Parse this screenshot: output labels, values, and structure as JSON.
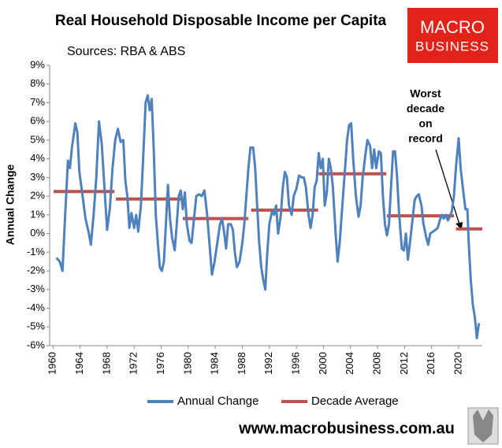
{
  "chart_data": {
    "type": "line",
    "title": "Real Household Disposable Income per Capita",
    "subtitle": "Sources: RBA & ABS",
    "y_label": "Annual Change",
    "annotation": [
      "Worst",
      "decade",
      "on",
      "record"
    ],
    "logo": [
      "MACRO",
      "BUSINESS"
    ],
    "website": "www.macrobusiness.com.au",
    "xlim": [
      1959.5,
      2023.5
    ],
    "xticks": [
      1960,
      1964,
      1968,
      1972,
      1976,
      1980,
      1984,
      1988,
      1992,
      1996,
      2000,
      2004,
      2008,
      2012,
      2016,
      2020
    ],
    "ylim": [
      -6,
      9
    ],
    "yticks": [
      {
        "value": -6,
        "label": "-6%"
      },
      {
        "value": -5,
        "label": "-5%"
      },
      {
        "value": -4,
        "label": "-4%"
      },
      {
        "value": -3,
        "label": "-3%"
      },
      {
        "value": -2,
        "label": "-2%"
      },
      {
        "value": -1,
        "label": "-1%"
      },
      {
        "value": 0,
        "label": "0%"
      },
      {
        "value": 1,
        "label": "1%"
      },
      {
        "value": 2,
        "label": "2%"
      },
      {
        "value": 3,
        "label": "3%"
      },
      {
        "value": 4,
        "label": "4%"
      },
      {
        "value": 5,
        "label": "5%"
      },
      {
        "value": 6,
        "label": "6%"
      },
      {
        "value": 7,
        "label": "7%"
      },
      {
        "value": 8,
        "label": "8%"
      },
      {
        "value": 9,
        "label": "9%"
      }
    ],
    "legend": "bottom",
    "series": [
      {
        "name": "Annual Change",
        "color": "#4f81bd",
        "x": [
          1960.5,
          1961,
          1961.4,
          1961.8,
          1962.2,
          1962.5,
          1962.8,
          1963.3,
          1963.6,
          1963.9,
          1964.3,
          1964.8,
          1965.3,
          1965.6,
          1966,
          1966.4,
          1966.8,
          1967.2,
          1967.6,
          1968,
          1968.4,
          1968.8,
          1969.2,
          1969.6,
          1970,
          1970.4,
          1970.7,
          1971,
          1971.3,
          1971.6,
          1972,
          1972.3,
          1972.6,
          1973,
          1973.3,
          1973.7,
          1974,
          1974.3,
          1974.6,
          1974.9,
          1975.2,
          1975.5,
          1975.8,
          1976.1,
          1976.4,
          1976.7,
          1977,
          1977.3,
          1977.6,
          1978,
          1978.3,
          1978.6,
          1978.9,
          1979.2,
          1979.5,
          1979.8,
          1980.2,
          1980.5,
          1980.8,
          1981.2,
          1981.6,
          1982,
          1982.4,
          1982.8,
          1983.2,
          1983.5,
          1983.9,
          1984.3,
          1984.7,
          1985,
          1985.3,
          1985.6,
          1985.9,
          1986.3,
          1986.6,
          1986.9,
          1987.2,
          1987.6,
          1988,
          1988.3,
          1988.6,
          1988.9,
          1989.2,
          1989.6,
          1989.9,
          1990.2,
          1990.5,
          1990.8,
          1991.1,
          1991.4,
          1991.7,
          1992,
          1992.4,
          1992.7,
          1993,
          1993.3,
          1993.7,
          1994,
          1994.3,
          1994.6,
          1994.9,
          1995.3,
          1995.6,
          1996,
          1996.4,
          1996.8,
          1997.1,
          1997.4,
          1997.8,
          1998.1,
          1998.4,
          1998.7,
          1999,
          1999.3,
          1999.6,
          1999.9,
          2000.2,
          2000.5,
          2000.8,
          2001.1,
          2001.4,
          2001.8,
          2002.1,
          2002.4,
          2002.8,
          2003.2,
          2003.5,
          2003.8,
          2004.1,
          2004.4,
          2004.8,
          2005.2,
          2005.5,
          2005.8,
          2006.2,
          2006.5,
          2006.9,
          2007.2,
          2007.5,
          2007.8,
          2008.2,
          2008.5,
          2008.8,
          2009.1,
          2009.4,
          2009.7,
          2010,
          2010.3,
          2010.6,
          2010.9,
          2011.2,
          2011.6,
          2011.9,
          2012.2,
          2012.5,
          2012.8,
          2013.1,
          2013.5,
          2013.8,
          2014.1,
          2014.5,
          2014.8,
          2015.2,
          2015.5,
          2015.8,
          2016.2,
          2016.6,
          2016.9,
          2017.2,
          2017.5,
          2017.8,
          2018.1,
          2018.4,
          2018.7,
          2019,
          2019.3,
          2019.6,
          2020,
          2020.3,
          2020.7,
          2021,
          2021.3,
          2021.5,
          2021.8,
          2022.1,
          2022.4,
          2022.7,
          2023
        ],
        "values": [
          -1.3,
          -1.5,
          -2.0,
          1.0,
          3.9,
          3.5,
          4.6,
          5.9,
          5.4,
          3.3,
          2.2,
          0.8,
          0.0,
          -0.6,
          1.0,
          3.0,
          6.0,
          4.8,
          2.5,
          0.2,
          1.3,
          3.5,
          5.0,
          5.6,
          4.9,
          5.0,
          2.8,
          2.0,
          0.3,
          1.1,
          0.3,
          1.0,
          0.1,
          1.5,
          3.8,
          7.0,
          7.4,
          6.6,
          7.2,
          4.5,
          1.0,
          -0.5,
          -1.8,
          -2.0,
          -1.5,
          0.5,
          2.6,
          0.8,
          -0.2,
          -0.9,
          0.5,
          2.0,
          2.3,
          1.3,
          2.2,
          0.5,
          -0.4,
          -0.5,
          0.6,
          2.0,
          2.1,
          2.0,
          2.3,
          1.0,
          -0.8,
          -2.2,
          -1.5,
          -0.5,
          0.5,
          0.8,
          0.1,
          -0.8,
          0.5,
          0.5,
          0.2,
          -1.0,
          -1.8,
          -1.5,
          -0.5,
          0.5,
          2.0,
          3.5,
          4.6,
          4.6,
          3.5,
          1.5,
          -0.5,
          -1.8,
          -2.5,
          -3.0,
          -1.0,
          0.5,
          1.2,
          1.0,
          1.5,
          0.0,
          1.0,
          2.5,
          3.3,
          3.0,
          1.5,
          1.0,
          2.0,
          2.4,
          3.1,
          3.0,
          3.0,
          2.5,
          1.0,
          0.3,
          1.0,
          2.5,
          2.8,
          4.3,
          3.5,
          4.0,
          1.5,
          2.2,
          4.0,
          3.5,
          2.5,
          0.0,
          -1.5,
          -0.5,
          1.5,
          3.5,
          5.0,
          5.8,
          5.9,
          4.0,
          2.0,
          0.9,
          1.5,
          3.0,
          4.2,
          5.0,
          4.7,
          3.5,
          4.5,
          3.5,
          4.4,
          4.3,
          2.0,
          0.5,
          -0.1,
          0.5,
          2.5,
          4.4,
          4.4,
          3.0,
          1.0,
          -0.8,
          -0.9,
          0.0,
          -1.4,
          -0.5,
          0.5,
          1.8,
          2.0,
          2.1,
          1.5,
          0.5,
          -0.2,
          -0.6,
          0.0,
          0.1,
          0.2,
          0.3,
          0.7,
          1.0,
          0.8,
          1.0,
          0.7,
          0.9,
          1.2,
          2.0,
          3.5,
          5.1,
          3.5,
          2.2,
          1.3,
          1.3,
          -0.5,
          -2.5,
          -3.8,
          -4.5,
          -5.6,
          -4.8
        ]
      },
      {
        "name": "Decade Average",
        "color": "#c0504d",
        "x": [
          1960.1,
          1969.1,
          1969.2,
          1969.3,
          1979.1,
          1979.15,
          1979.2,
          1988.9,
          1989.1,
          1989.3,
          1999.2,
          1999.25,
          1999.3,
          2009.3,
          2009.35,
          2009.4,
          2019.3,
          2019.45,
          2019.6,
          2023.5
        ],
        "values": [
          2.25,
          2.25,
          null,
          1.85,
          1.85,
          null,
          0.8,
          0.8,
          null,
          1.25,
          1.25,
          null,
          3.2,
          3.2,
          null,
          0.95,
          0.95,
          null,
          0.25,
          0.25
        ]
      }
    ]
  }
}
